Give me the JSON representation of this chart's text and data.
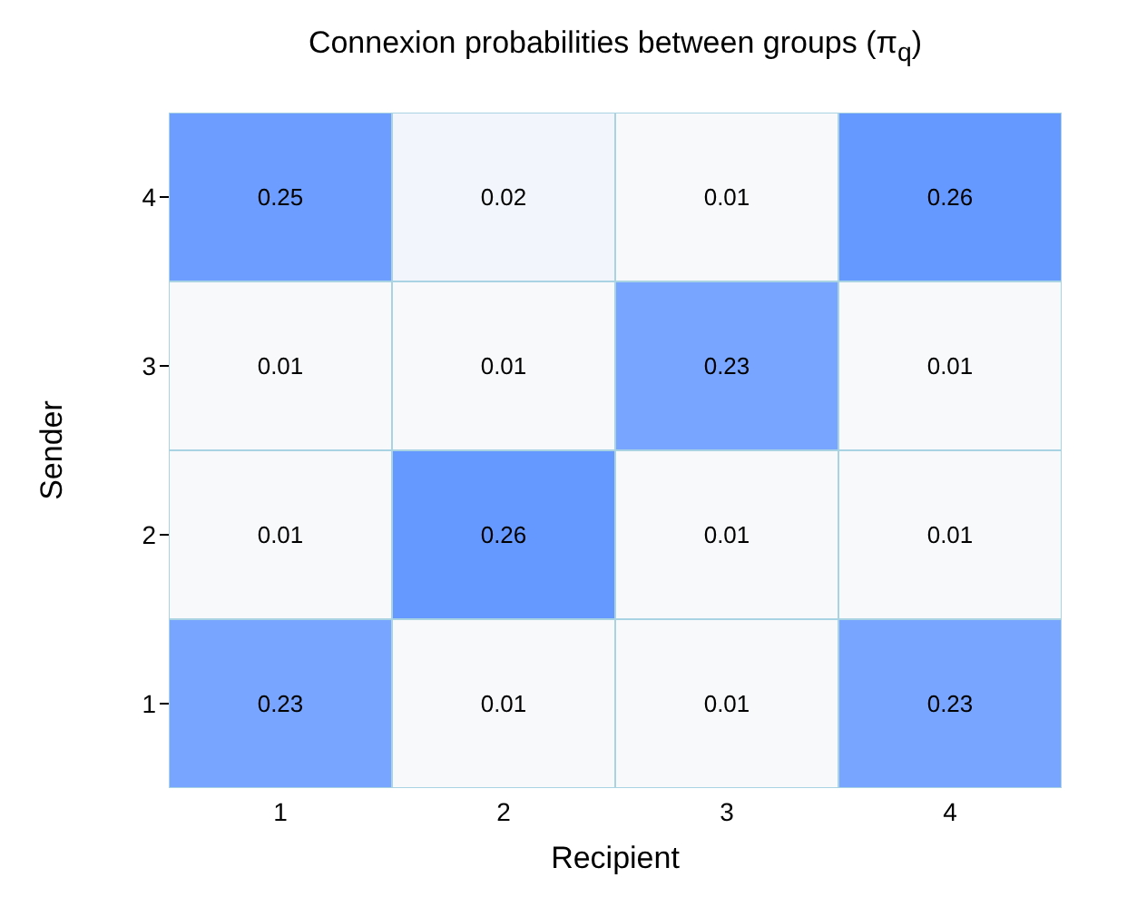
{
  "chart_data": {
    "type": "heatmap",
    "title": "Connexion probabilities between groups (π$_{q}$)",
    "xlabel": "Recipient",
    "ylabel": "Sender",
    "categories": [
      "1",
      "2",
      "3",
      "4"
    ],
    "y_categories": [
      "4",
      "3",
      "2",
      "1"
    ],
    "cells": [
      [
        0.25,
        0.02,
        0.01,
        0.26
      ],
      [
        0.01,
        0.01,
        0.23,
        0.01
      ],
      [
        0.01,
        0.26,
        0.01,
        0.01
      ],
      [
        0.23,
        0.01,
        0.01,
        0.23
      ]
    ],
    "colors": [
      "#f8f9fb",
      "#6699ff"
    ],
    "data_labels": true
  }
}
